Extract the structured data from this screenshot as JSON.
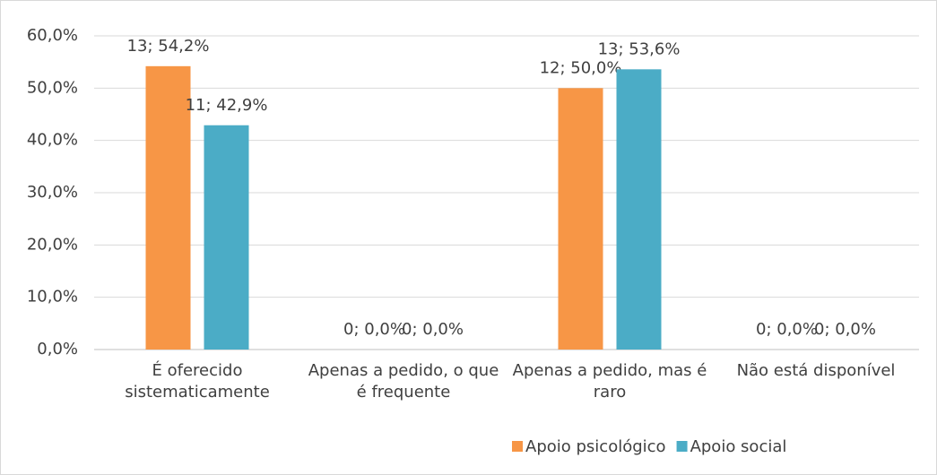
{
  "chart_data": {
    "type": "bar",
    "categories": [
      "É oferecido sistematicamente",
      "Apenas a pedido, o que é frequente",
      "Apenas a pedido, mas é raro",
      "Não está disponível"
    ],
    "series": [
      {
        "name": "Apoio psicológico",
        "color": "#f79646",
        "values": [
          54.2,
          0.0,
          50.0,
          0.0
        ],
        "value_labels": [
          "13; 54,2%",
          "0; 0,0%",
          "12; 50,0%",
          "0; 0,0%"
        ]
      },
      {
        "name": "Apoio social",
        "color": "#4bacc6",
        "values": [
          42.9,
          0.0,
          53.6,
          0.0
        ],
        "value_labels": [
          "11; 42,9%",
          "0; 0,0%",
          "13; 53,6%",
          "0; 0,0%"
        ]
      }
    ],
    "ylim": [
      0,
      60
    ],
    "yticks": [
      {
        "value": 0,
        "label": "0,0%"
      },
      {
        "value": 10,
        "label": "10,0%"
      },
      {
        "value": 20,
        "label": "20,0%"
      },
      {
        "value": 30,
        "label": "30,0%"
      },
      {
        "value": 40,
        "label": "40,0%"
      },
      {
        "value": 50,
        "label": "50,0%"
      },
      {
        "value": 60,
        "label": "60,0%"
      }
    ],
    "grid": true,
    "legend": "bottom"
  }
}
